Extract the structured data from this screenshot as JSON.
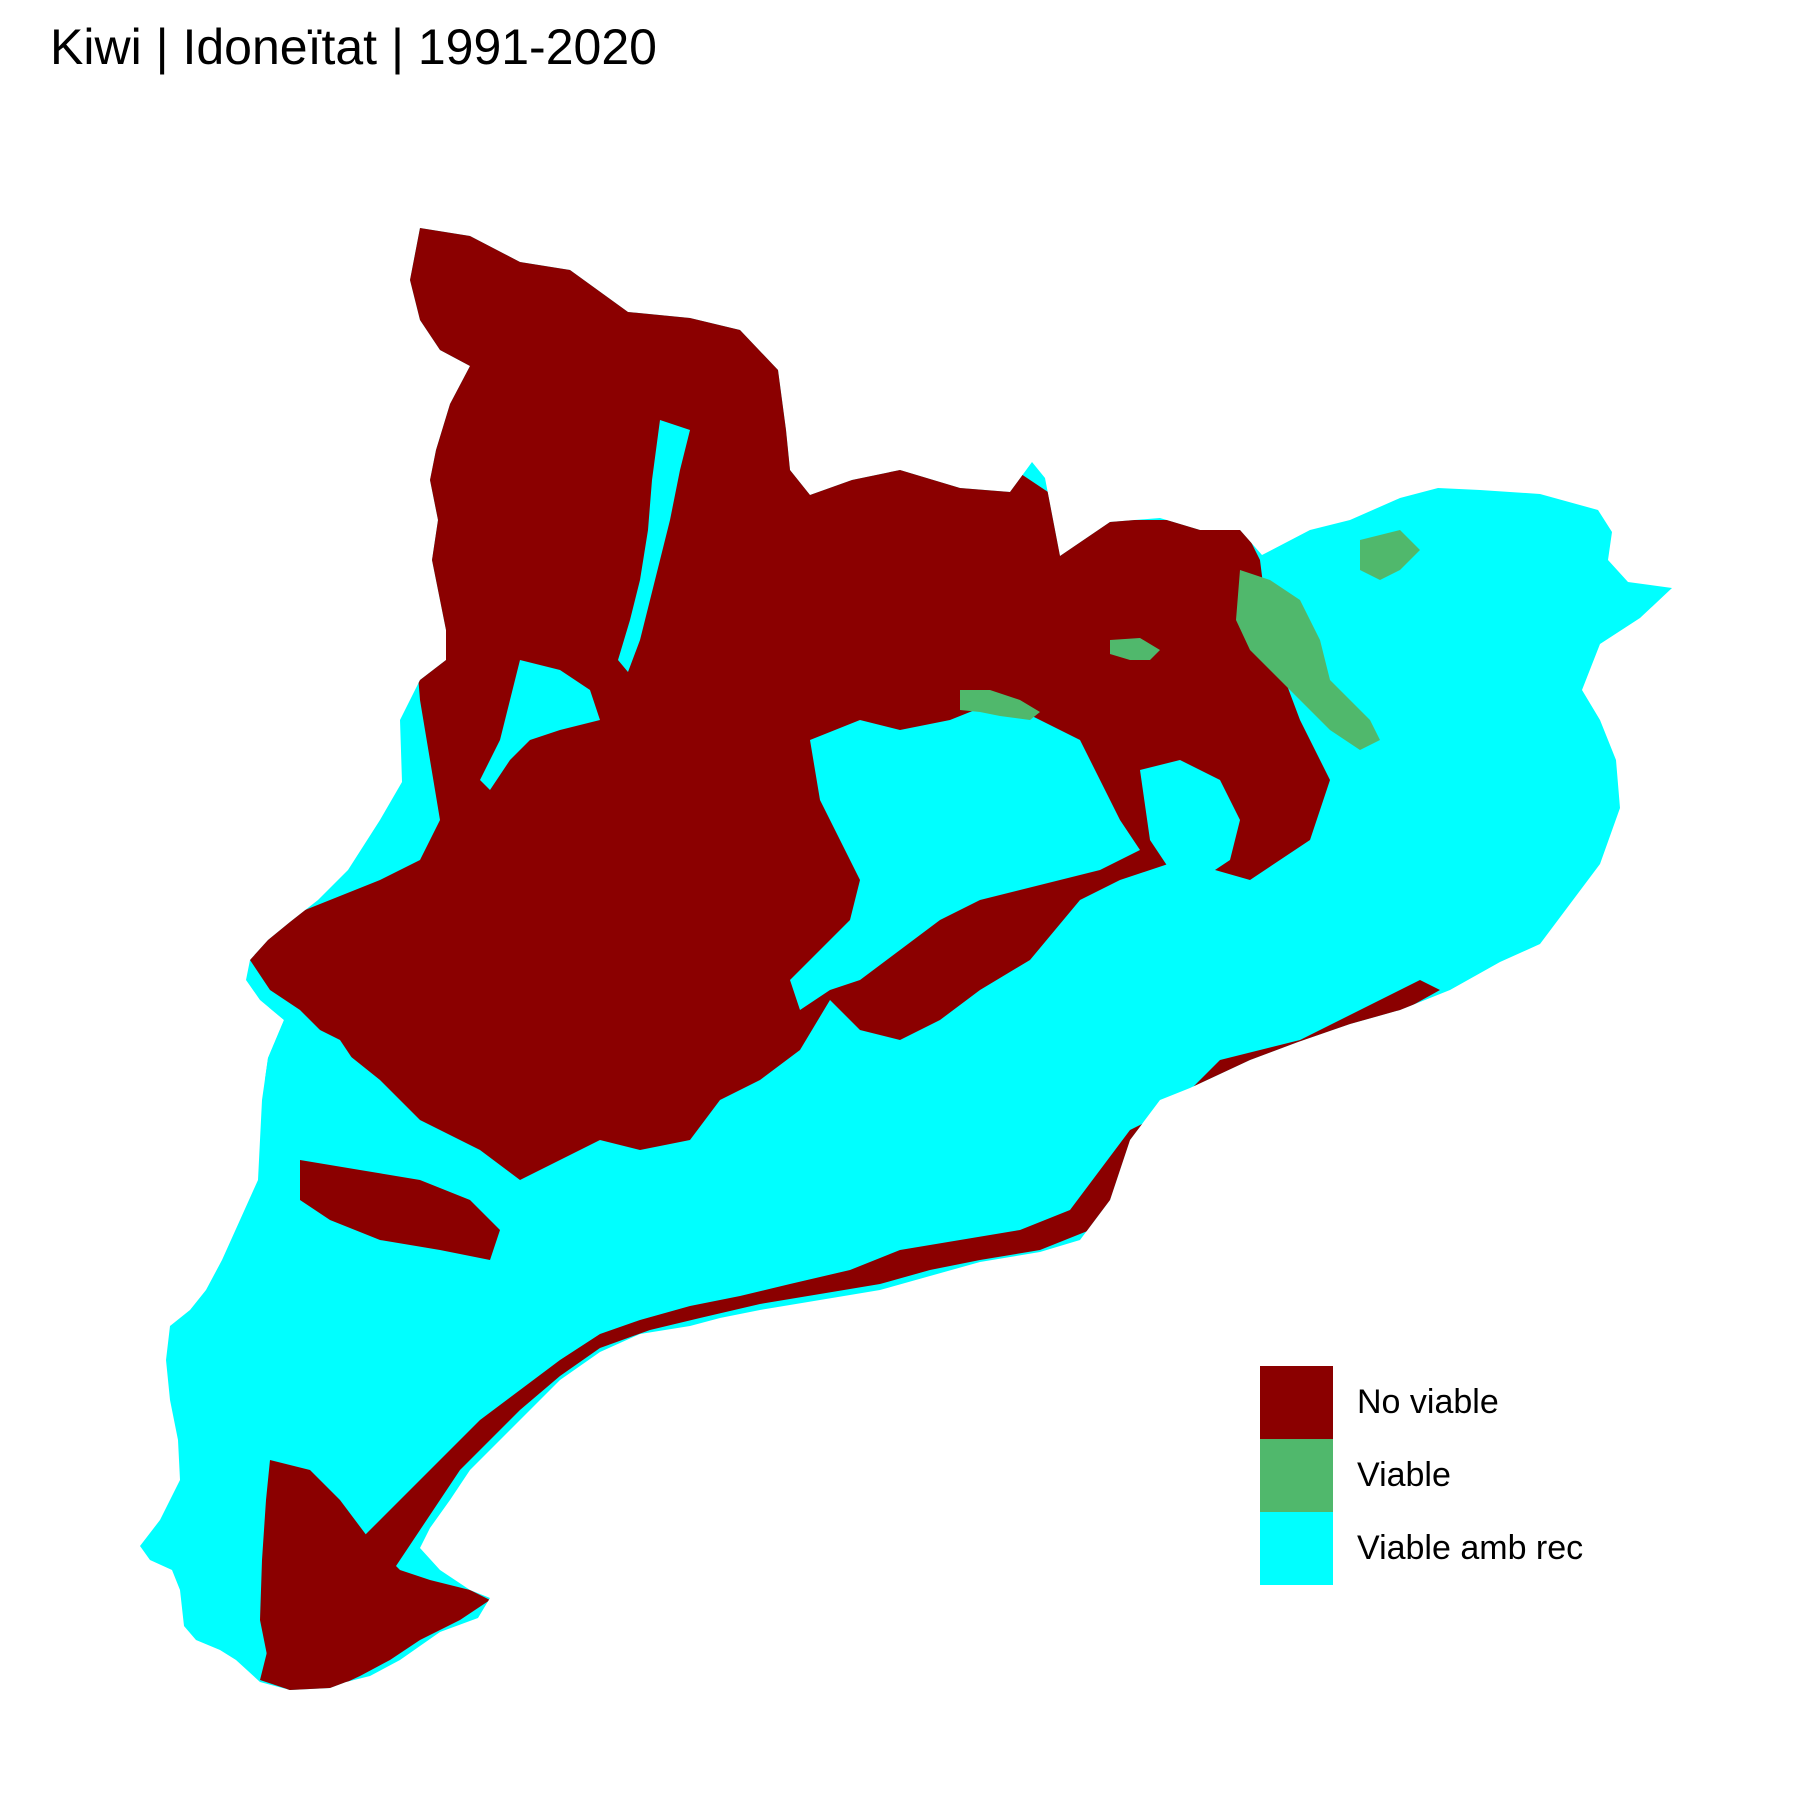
{
  "title": "Kiwi | Idoneïtat | 1991-2020",
  "legend": {
    "items": [
      {
        "label": "No viable",
        "color": "#8B0000"
      },
      {
        "label": "Viable",
        "color": "#50B86C"
      },
      {
        "label": "Viable amb rec",
        "color": "#00FFFF"
      }
    ]
  }
}
